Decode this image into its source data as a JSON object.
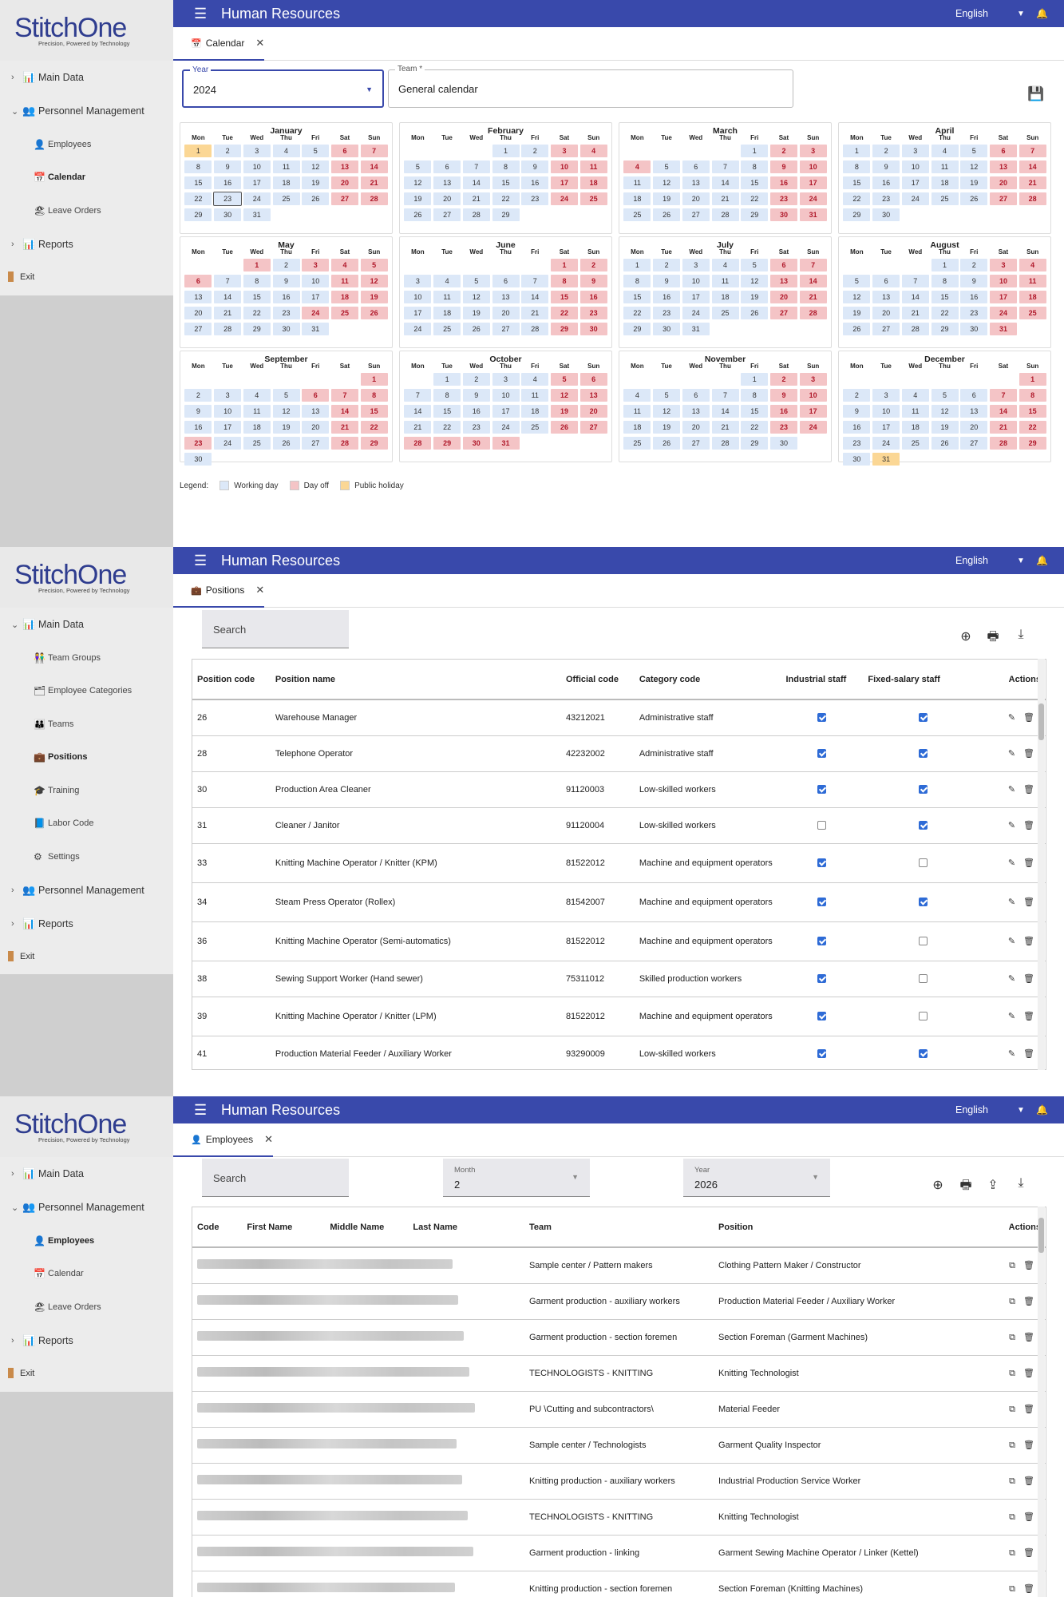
{
  "app": {
    "brand": "StitchOne",
    "tagline": "Precision, Powered by Technology",
    "title": "Human Resources",
    "language": "English",
    "menu_icon": "hamburger-icon",
    "bell_icon": "bell-icon"
  },
  "sidebar_labels": {
    "main_data": "Main Data",
    "personnel": "Personnel Management",
    "employees": "Employees",
    "calendar": "Calendar",
    "leave_orders": "Leave Orders",
    "reports": "Reports",
    "exit": "Exit",
    "team_groups": "Team Groups",
    "employee_categories": "Employee Categories",
    "teams": "Teams",
    "positions": "Positions",
    "training": "Training",
    "labor_code": "Labor Code",
    "settings": "Settings"
  },
  "calendar_screen": {
    "tab": "Calendar",
    "year_label": "Year",
    "year_value": "2024",
    "team_label": "Team *",
    "team_value": "General calendar",
    "weekdays": [
      "Mon",
      "Tue",
      "Wed",
      "Thu",
      "Fri",
      "Sat",
      "Sun"
    ],
    "legend": {
      "prefix": "Legend:",
      "working": "Working day",
      "off": "Day off",
      "holiday": "Public holiday"
    },
    "colors": {
      "working": "#dce8f8",
      "off": "#f4c4c6",
      "holiday": "#fbd795"
    },
    "months": [
      {
        "name": "January",
        "offset": 0,
        "days": 31,
        "off": [
          6,
          7,
          13,
          14,
          20,
          21,
          27,
          28
        ],
        "holiday": [
          1
        ],
        "today": 23
      },
      {
        "name": "February",
        "offset": 3,
        "days": 29,
        "off": [
          3,
          4,
          10,
          11,
          17,
          18,
          24,
          25
        ],
        "holiday": []
      },
      {
        "name": "March",
        "offset": 4,
        "days": 31,
        "off": [
          2,
          3,
          4,
          9,
          10,
          16,
          17,
          23,
          24,
          30,
          31
        ],
        "holiday": []
      },
      {
        "name": "April",
        "offset": 0,
        "days": 30,
        "off": [
          6,
          7,
          13,
          14,
          20,
          21,
          27,
          28
        ],
        "holiday": []
      },
      {
        "name": "May",
        "offset": 2,
        "days": 31,
        "off": [
          1,
          3,
          4,
          5,
          6,
          11,
          12,
          18,
          19,
          24,
          25,
          26
        ],
        "holiday": []
      },
      {
        "name": "June",
        "offset": 5,
        "days": 30,
        "off": [
          1,
          2,
          8,
          9,
          15,
          16,
          22,
          23,
          29,
          30
        ],
        "holiday": []
      },
      {
        "name": "July",
        "offset": 0,
        "days": 31,
        "off": [
          6,
          7,
          13,
          14,
          20,
          21,
          27,
          28
        ],
        "holiday": []
      },
      {
        "name": "August",
        "offset": 3,
        "days": 31,
        "off": [
          3,
          4,
          10,
          11,
          17,
          18,
          24,
          25,
          31
        ],
        "holiday": []
      },
      {
        "name": "September",
        "offset": 6,
        "days": 30,
        "off": [
          1,
          6,
          7,
          8,
          14,
          15,
          21,
          22,
          23,
          28,
          29
        ],
        "holiday": []
      },
      {
        "name": "October",
        "offset": 1,
        "days": 31,
        "off": [
          5,
          6,
          12,
          13,
          19,
          20,
          26,
          27,
          28,
          29,
          30,
          31
        ],
        "holiday": []
      },
      {
        "name": "November",
        "offset": 4,
        "days": 30,
        "off": [
          2,
          3,
          9,
          10,
          16,
          17,
          23,
          24
        ],
        "holiday": []
      },
      {
        "name": "December",
        "offset": 6,
        "days": 31,
        "off": [
          1,
          7,
          8,
          14,
          15,
          21,
          22,
          28,
          29
        ],
        "holiday": [
          31
        ]
      }
    ]
  },
  "positions_screen": {
    "tab": "Positions",
    "search_placeholder": "Search",
    "headers": [
      "Position code",
      "Position name",
      "Official code",
      "Category code",
      "Industrial staff",
      "Fixed-salary staff",
      "Actions"
    ],
    "rows": [
      {
        "code": "26",
        "name": "Warehouse Manager",
        "official": "43212021",
        "category": "Administrative staff",
        "industrial": true,
        "fixed": true
      },
      {
        "code": "28",
        "name": "Telephone Operator",
        "official": "42232002",
        "category": "Administrative staff",
        "industrial": true,
        "fixed": true
      },
      {
        "code": "30",
        "name": "Production Area Cleaner",
        "official": "91120003",
        "category": "Low-skilled workers",
        "industrial": true,
        "fixed": true
      },
      {
        "code": "31",
        "name": "Cleaner / Janitor",
        "official": "91120004",
        "category": "Low-skilled workers",
        "industrial": false,
        "fixed": true
      },
      {
        "code": "33",
        "name": "Knitting Machine Operator / Knitter (KPM)",
        "official": "81522012",
        "category": "Machine and equipment operators",
        "industrial": true,
        "fixed": false
      },
      {
        "code": "34",
        "name": "Steam Press Operator (Rollex)",
        "official": "81542007",
        "category": "Machine and equipment operators",
        "industrial": true,
        "fixed": true
      },
      {
        "code": "36",
        "name": "Knitting Machine Operator (Semi-automatics)",
        "official": "81522012",
        "category": "Machine and equipment operators",
        "industrial": true,
        "fixed": false
      },
      {
        "code": "38",
        "name": "Sewing Support Worker (Hand sewer)",
        "official": "75311012",
        "category": "Skilled production workers",
        "industrial": true,
        "fixed": false
      },
      {
        "code": "39",
        "name": "Knitting Machine Operator / Knitter (LPM)",
        "official": "81522012",
        "category": "Machine and equipment operators",
        "industrial": true,
        "fixed": false
      },
      {
        "code": "41",
        "name": "Production Material Feeder / Auxiliary Worker",
        "official": "93290009",
        "category": "Low-skilled workers",
        "industrial": true,
        "fixed": true
      }
    ]
  },
  "employees_screen": {
    "tab": "Employees",
    "search_placeholder": "Search",
    "month_label": "Month",
    "month_value": "2",
    "year_label": "Year",
    "year_value": "2026",
    "headers": [
      "Code",
      "First Name",
      "Middle Name",
      "Last Name",
      "Team",
      "Position",
      "Actions"
    ],
    "rows": [
      {
        "team": "Sample center / Pattern makers",
        "position": "Clothing Pattern Maker / Constructor"
      },
      {
        "team": "Garment production - auxiliary workers",
        "position": "Production Material Feeder / Auxiliary Worker"
      },
      {
        "team": "Garment production - section foremen",
        "position": "Section Foreman (Garment Machines)"
      },
      {
        "team": "TECHNOLOGISTS - KNITTING",
        "position": "Knitting Technologist"
      },
      {
        "team": "PU \\Cutting and subcontractors\\",
        "position": "Material Feeder"
      },
      {
        "team": "Sample center / Technologists",
        "position": "Garment Quality Inspector"
      },
      {
        "team": "Knitting production - auxiliary workers",
        "position": "Industrial Production Service Worker"
      },
      {
        "team": "TECHNOLOGISTS - KNITTING",
        "position": "Knitting Technologist"
      },
      {
        "team": "Garment production - linking",
        "position": "Garment Sewing Machine Operator / Linker (Kettel)"
      },
      {
        "team": "Knitting production - section foremen",
        "position": "Section Foreman (Knitting Machines)"
      }
    ]
  }
}
